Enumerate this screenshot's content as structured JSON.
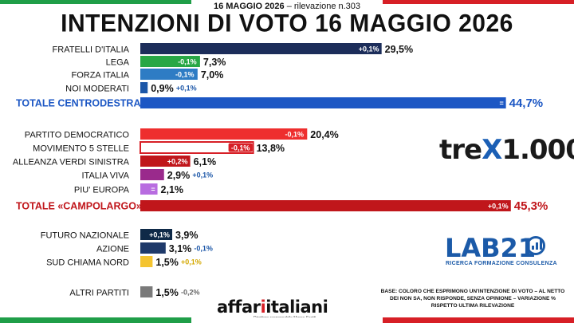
{
  "header": {
    "date": "16 MAGGIO 2026",
    "survey": "– rilevazione n.303",
    "title": "INTENZIONI DI VOTO 16 MAGGIO 2026"
  },
  "chart_data": {
    "type": "bar",
    "orientation": "horizontal",
    "unit": "%",
    "bars": [
      {
        "label": "FRATELLI D'ITALIA",
        "value": 29.5,
        "value_label": "29,5%",
        "change": "+0,1%",
        "color": "#1c2d5a",
        "group": "centrodestra",
        "total": false
      },
      {
        "label": "LEGA",
        "value": 7.3,
        "value_label": "7,3%",
        "change": "-0,1%",
        "color": "#28a745",
        "group": "centrodestra",
        "total": false
      },
      {
        "label": "FORZA ITALIA",
        "value": 7.0,
        "value_label": "7,0%",
        "change": "-0,1%",
        "color": "#2e7cc4",
        "group": "centrodestra",
        "total": false
      },
      {
        "label": "NOI MODERATI",
        "value": 0.9,
        "value_label": "0,9%",
        "change": "+0,1%",
        "color": "#1c57a8",
        "group": "centrodestra",
        "total": false
      },
      {
        "label": "TOTALE CENTRODESTRA",
        "value": 44.7,
        "value_label": "44,7%",
        "change": "=",
        "color": "#1c57c4",
        "group": "centrodestra",
        "total": true
      },
      {
        "label": "PARTITO DEMOCRATICO",
        "value": 20.4,
        "value_label": "20,4%",
        "change": "-0,1%",
        "color": "#ee2e2e",
        "group": "campolargo",
        "total": false
      },
      {
        "label": "MOVIMENTO 5 STELLE",
        "value": 13.8,
        "value_label": "13,8%",
        "change": "-0,1%",
        "color": "#ffffff",
        "group": "campolargo",
        "total": false
      },
      {
        "label": "ALLEANZA VERDI SINISTRA",
        "value": 6.1,
        "value_label": "6,1%",
        "change": "+0,2%",
        "color": "#c0161b",
        "group": "campolargo",
        "total": false
      },
      {
        "label": "ITALIA VIVA",
        "value": 2.9,
        "value_label": "2,9%",
        "change": "+0,1%",
        "color": "#9a2a8c",
        "group": "campolargo",
        "total": false
      },
      {
        "label": "PIU' EUROPA",
        "value": 2.1,
        "value_label": "2,1%",
        "change": "=",
        "color": "#b86ce0",
        "group": "campolargo",
        "total": false
      },
      {
        "label": "TOTALE «CAMPOLARGO»",
        "value": 45.3,
        "value_label": "45,3%",
        "change": "+0,1%",
        "color": "#c0161b",
        "group": "campolargo",
        "total": true
      },
      {
        "label": "FUTURO NAZIONALE",
        "value": 3.9,
        "value_label": "3,9%",
        "change": "+0,1%",
        "color": "#0f2a48",
        "group": "altri",
        "total": false
      },
      {
        "label": "AZIONE",
        "value": 3.1,
        "value_label": "3,1%",
        "change": "-0,1%",
        "color": "#1f3a6a",
        "group": "altri",
        "total": false
      },
      {
        "label": "SUD CHIAMA NORD",
        "value": 1.5,
        "value_label": "1,5%",
        "change": "+0,1%",
        "color": "#f4c430",
        "group": "altri",
        "total": false
      },
      {
        "label": "ALTRI PARTITI",
        "value": 1.5,
        "value_label": "1,5%",
        "change": "-0,2%",
        "color": "#7a7a7a",
        "group": "altri",
        "total": false
      }
    ],
    "totals_colors": {
      "centrodestra": "#1c57c4",
      "campolargo": "#c0161b"
    }
  },
  "brands": {
    "trex": {
      "pre": "tre",
      "x": "X",
      "post": "1.000"
    },
    "lab": {
      "name": "LAB21",
      "sub": "RICERCA FORMAZIONE CONSULENZA"
    },
    "affaritaliani": {
      "pre": "affar",
      "mid": "i",
      "post": "italiani",
      "sub": "Direttore responsabile Marco Scotti"
    }
  },
  "footnote": "BASE: COLORO CHE ESPRIMONO UN'INTENZIONE DI VOTO – AL NETTO DEI NON SA, NON RISPONDE, SENZA OPINIONE – VARIAZIONE % RISPETTO ULTIMA RILEVAZIONE"
}
